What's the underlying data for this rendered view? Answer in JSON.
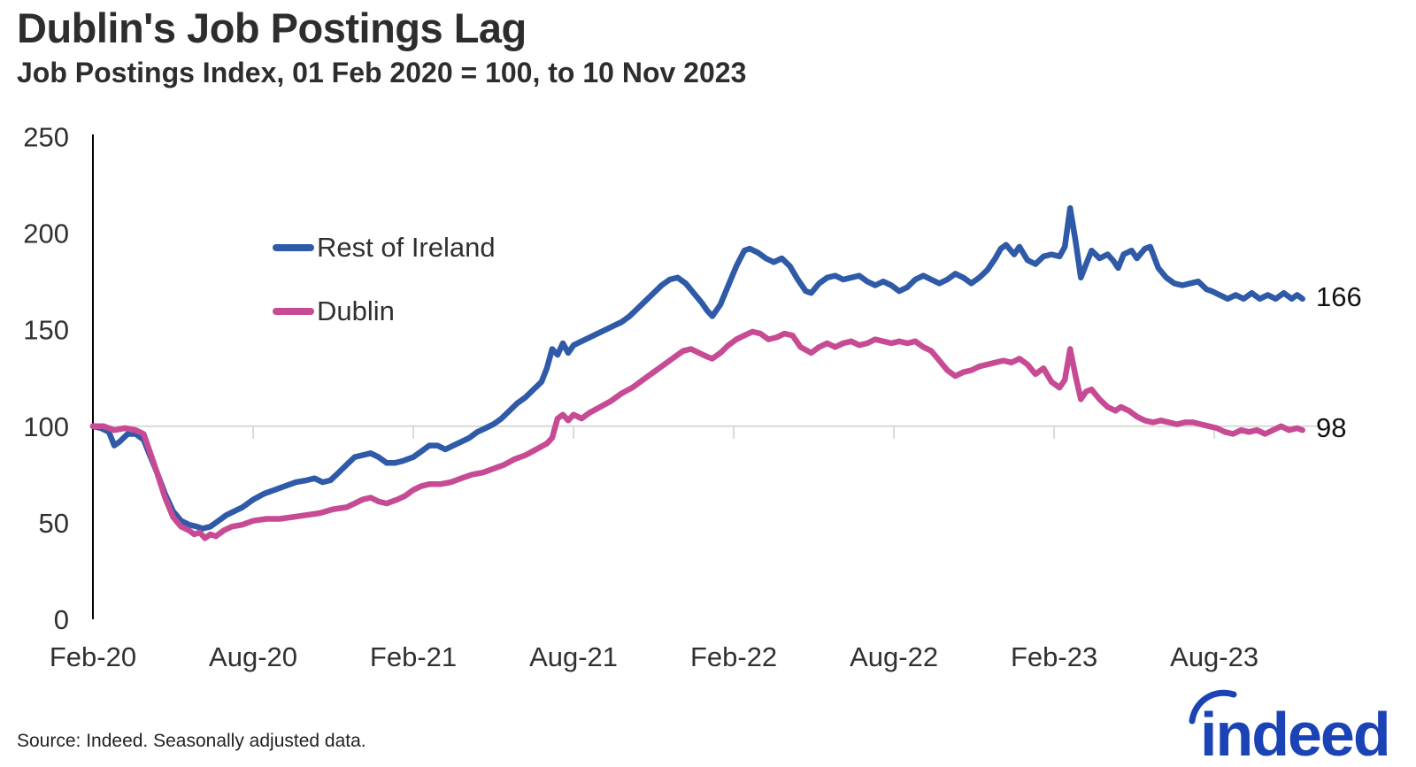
{
  "header": {
    "title": "Dublin's Job Postings Lag",
    "subtitle": "Job Postings Index, 01 Feb 2020 = 100, to 10 Nov 2023"
  },
  "footer": {
    "source": "Source: Indeed. Seasonally adjusted data.",
    "logo_text": "indeed"
  },
  "colors": {
    "rest_of_ireland_line": "#2F5AA7",
    "dublin_line": "#C74B94",
    "gridline": "#d9d9d9",
    "axis": "#000000",
    "text": "#303030",
    "logo_blue": "#1A44B5"
  },
  "chart_data": {
    "type": "line",
    "title": "Dublin's Job Postings Lag",
    "subtitle": "Job Postings Index, 01 Feb 2020 = 100, to 10 Nov 2023",
    "xlabel": "",
    "ylabel": "",
    "x_unit": "months since Feb-2020",
    "xlim": [
      0,
      45.3
    ],
    "ylim": [
      0,
      250
    ],
    "yticks": [
      250,
      200,
      150,
      100,
      50,
      0
    ],
    "xtick_months": [
      0,
      6,
      12,
      18,
      24,
      30,
      36,
      42
    ],
    "xticklabels": [
      "Feb-20",
      "Aug-20",
      "Feb-21",
      "Aug-21",
      "Feb-22",
      "Aug-22",
      "Feb-23",
      "Aug-23"
    ],
    "baseline_value": 100,
    "grid": "single horizontal gridline at index 100 with ticks at each Feb/Aug",
    "legend_position": "upper-left inside plot",
    "series": [
      {
        "name": "Rest of Ireland",
        "color": "#2F5AA7",
        "end_label": "166",
        "points": [
          [
            0,
            100
          ],
          [
            0.3,
            99
          ],
          [
            0.6,
            97
          ],
          [
            0.8,
            90
          ],
          [
            1.0,
            92
          ],
          [
            1.3,
            96
          ],
          [
            1.6,
            96
          ],
          [
            1.9,
            93
          ],
          [
            2.1,
            86
          ],
          [
            2.4,
            76
          ],
          [
            2.7,
            65
          ],
          [
            3.0,
            56
          ],
          [
            3.3,
            51
          ],
          [
            3.6,
            49
          ],
          [
            3.9,
            48
          ],
          [
            4.1,
            47
          ],
          [
            4.4,
            48
          ],
          [
            4.7,
            51
          ],
          [
            5.0,
            54
          ],
          [
            5.3,
            56
          ],
          [
            5.6,
            58
          ],
          [
            6.0,
            62
          ],
          [
            6.4,
            65
          ],
          [
            6.8,
            67
          ],
          [
            7.2,
            69
          ],
          [
            7.6,
            71
          ],
          [
            8.0,
            72
          ],
          [
            8.3,
            73
          ],
          [
            8.6,
            71
          ],
          [
            8.9,
            72
          ],
          [
            9.2,
            76
          ],
          [
            9.5,
            80
          ],
          [
            9.8,
            84
          ],
          [
            10.1,
            85
          ],
          [
            10.4,
            86
          ],
          [
            10.7,
            84
          ],
          [
            11.0,
            81
          ],
          [
            11.3,
            81
          ],
          [
            11.6,
            82
          ],
          [
            12.0,
            84
          ],
          [
            12.3,
            87
          ],
          [
            12.6,
            90
          ],
          [
            12.9,
            90
          ],
          [
            13.2,
            88
          ],
          [
            13.5,
            90
          ],
          [
            13.8,
            92
          ],
          [
            14.1,
            94
          ],
          [
            14.4,
            97
          ],
          [
            14.7,
            99
          ],
          [
            15.0,
            101
          ],
          [
            15.3,
            104
          ],
          [
            15.6,
            108
          ],
          [
            15.9,
            112
          ],
          [
            16.2,
            115
          ],
          [
            16.5,
            119
          ],
          [
            16.8,
            123
          ],
          [
            17.0,
            130
          ],
          [
            17.2,
            140
          ],
          [
            17.4,
            137
          ],
          [
            17.6,
            143
          ],
          [
            17.8,
            138
          ],
          [
            18.0,
            142
          ],
          [
            18.3,
            144
          ],
          [
            18.6,
            146
          ],
          [
            18.9,
            148
          ],
          [
            19.2,
            150
          ],
          [
            19.5,
            152
          ],
          [
            19.8,
            154
          ],
          [
            20.1,
            157
          ],
          [
            20.4,
            161
          ],
          [
            20.7,
            165
          ],
          [
            21.0,
            169
          ],
          [
            21.3,
            173
          ],
          [
            21.6,
            176
          ],
          [
            21.9,
            177
          ],
          [
            22.2,
            174
          ],
          [
            22.5,
            169
          ],
          [
            22.8,
            164
          ],
          [
            23.0,
            160
          ],
          [
            23.2,
            157
          ],
          [
            23.5,
            163
          ],
          [
            23.8,
            173
          ],
          [
            24.1,
            183
          ],
          [
            24.4,
            191
          ],
          [
            24.6,
            192
          ],
          [
            24.9,
            190
          ],
          [
            25.2,
            187
          ],
          [
            25.5,
            185
          ],
          [
            25.8,
            187
          ],
          [
            26.1,
            183
          ],
          [
            26.4,
            176
          ],
          [
            26.7,
            170
          ],
          [
            26.9,
            169
          ],
          [
            27.2,
            174
          ],
          [
            27.5,
            177
          ],
          [
            27.8,
            178
          ],
          [
            28.1,
            176
          ],
          [
            28.4,
            177
          ],
          [
            28.7,
            178
          ],
          [
            29.0,
            175
          ],
          [
            29.3,
            173
          ],
          [
            29.6,
            175
          ],
          [
            29.9,
            173
          ],
          [
            30.2,
            170
          ],
          [
            30.5,
            172
          ],
          [
            30.8,
            176
          ],
          [
            31.1,
            178
          ],
          [
            31.4,
            176
          ],
          [
            31.7,
            174
          ],
          [
            32.0,
            176
          ],
          [
            32.3,
            179
          ],
          [
            32.6,
            177
          ],
          [
            32.9,
            174
          ],
          [
            33.2,
            177
          ],
          [
            33.5,
            181
          ],
          [
            33.8,
            187
          ],
          [
            34.0,
            192
          ],
          [
            34.2,
            194
          ],
          [
            34.5,
            189
          ],
          [
            34.7,
            193
          ],
          [
            35.0,
            186
          ],
          [
            35.3,
            184
          ],
          [
            35.6,
            188
          ],
          [
            35.9,
            189
          ],
          [
            36.2,
            188
          ],
          [
            36.4,
            193
          ],
          [
            36.6,
            213
          ],
          [
            36.8,
            196
          ],
          [
            37.0,
            177
          ],
          [
            37.2,
            184
          ],
          [
            37.4,
            191
          ],
          [
            37.7,
            187
          ],
          [
            38.0,
            189
          ],
          [
            38.2,
            186
          ],
          [
            38.4,
            182
          ],
          [
            38.6,
            189
          ],
          [
            38.9,
            191
          ],
          [
            39.1,
            187
          ],
          [
            39.4,
            192
          ],
          [
            39.6,
            193
          ],
          [
            39.9,
            182
          ],
          [
            40.2,
            177
          ],
          [
            40.5,
            174
          ],
          [
            40.8,
            173
          ],
          [
            41.1,
            174
          ],
          [
            41.4,
            175
          ],
          [
            41.7,
            171
          ],
          [
            41.9,
            170
          ],
          [
            42.2,
            168
          ],
          [
            42.5,
            166
          ],
          [
            42.8,
            168
          ],
          [
            43.1,
            166
          ],
          [
            43.4,
            169
          ],
          [
            43.7,
            166
          ],
          [
            44.0,
            168
          ],
          [
            44.3,
            166
          ],
          [
            44.6,
            169
          ],
          [
            44.9,
            166
          ],
          [
            45.1,
            168
          ],
          [
            45.3,
            166
          ]
        ]
      },
      {
        "name": "Dublin",
        "color": "#C74B94",
        "end_label": "98",
        "points": [
          [
            0,
            100
          ],
          [
            0.4,
            100
          ],
          [
            0.8,
            98
          ],
          [
            1.2,
            99
          ],
          [
            1.6,
            98
          ],
          [
            1.9,
            96
          ],
          [
            2.1,
            88
          ],
          [
            2.4,
            76
          ],
          [
            2.7,
            63
          ],
          [
            3.0,
            53
          ],
          [
            3.3,
            48
          ],
          [
            3.6,
            46
          ],
          [
            3.8,
            44
          ],
          [
            4.0,
            45
          ],
          [
            4.2,
            42
          ],
          [
            4.4,
            44
          ],
          [
            4.6,
            43
          ],
          [
            4.9,
            46
          ],
          [
            5.2,
            48
          ],
          [
            5.6,
            49
          ],
          [
            6.0,
            51
          ],
          [
            6.5,
            52
          ],
          [
            7.0,
            52
          ],
          [
            7.5,
            53
          ],
          [
            8.0,
            54
          ],
          [
            8.5,
            55
          ],
          [
            9.0,
            57
          ],
          [
            9.5,
            58
          ],
          [
            9.8,
            60
          ],
          [
            10.1,
            62
          ],
          [
            10.4,
            63
          ],
          [
            10.7,
            61
          ],
          [
            11.0,
            60
          ],
          [
            11.4,
            62
          ],
          [
            11.7,
            64
          ],
          [
            12.0,
            67
          ],
          [
            12.3,
            69
          ],
          [
            12.6,
            70
          ],
          [
            13.0,
            70
          ],
          [
            13.4,
            71
          ],
          [
            13.8,
            73
          ],
          [
            14.2,
            75
          ],
          [
            14.6,
            76
          ],
          [
            15.0,
            78
          ],
          [
            15.4,
            80
          ],
          [
            15.8,
            83
          ],
          [
            16.2,
            85
          ],
          [
            16.6,
            88
          ],
          [
            17.0,
            91
          ],
          [
            17.2,
            94
          ],
          [
            17.4,
            104
          ],
          [
            17.6,
            106
          ],
          [
            17.8,
            103
          ],
          [
            18.0,
            106
          ],
          [
            18.3,
            104
          ],
          [
            18.6,
            107
          ],
          [
            19.0,
            110
          ],
          [
            19.4,
            113
          ],
          [
            19.8,
            117
          ],
          [
            20.2,
            120
          ],
          [
            20.6,
            124
          ],
          [
            21.0,
            128
          ],
          [
            21.4,
            132
          ],
          [
            21.8,
            136
          ],
          [
            22.1,
            139
          ],
          [
            22.4,
            140
          ],
          [
            22.7,
            138
          ],
          [
            23.0,
            136
          ],
          [
            23.2,
            135
          ],
          [
            23.5,
            138
          ],
          [
            23.8,
            142
          ],
          [
            24.1,
            145
          ],
          [
            24.4,
            147
          ],
          [
            24.7,
            149
          ],
          [
            25.0,
            148
          ],
          [
            25.3,
            145
          ],
          [
            25.6,
            146
          ],
          [
            25.9,
            148
          ],
          [
            26.2,
            147
          ],
          [
            26.5,
            141
          ],
          [
            26.9,
            138
          ],
          [
            27.2,
            141
          ],
          [
            27.5,
            143
          ],
          [
            27.8,
            141
          ],
          [
            28.1,
            143
          ],
          [
            28.4,
            144
          ],
          [
            28.7,
            142
          ],
          [
            29.0,
            143
          ],
          [
            29.3,
            145
          ],
          [
            29.6,
            144
          ],
          [
            29.9,
            143
          ],
          [
            30.2,
            144
          ],
          [
            30.5,
            143
          ],
          [
            30.8,
            144
          ],
          [
            31.1,
            141
          ],
          [
            31.4,
            139
          ],
          [
            31.7,
            134
          ],
          [
            32.0,
            129
          ],
          [
            32.3,
            126
          ],
          [
            32.6,
            128
          ],
          [
            32.9,
            129
          ],
          [
            33.2,
            131
          ],
          [
            33.5,
            132
          ],
          [
            33.8,
            133
          ],
          [
            34.1,
            134
          ],
          [
            34.4,
            133
          ],
          [
            34.7,
            135
          ],
          [
            35.0,
            132
          ],
          [
            35.3,
            127
          ],
          [
            35.6,
            130
          ],
          [
            35.9,
            123
          ],
          [
            36.2,
            120
          ],
          [
            36.4,
            124
          ],
          [
            36.6,
            140
          ],
          [
            36.8,
            126
          ],
          [
            37.0,
            114
          ],
          [
            37.2,
            118
          ],
          [
            37.4,
            119
          ],
          [
            37.7,
            114
          ],
          [
            38.0,
            110
          ],
          [
            38.3,
            108
          ],
          [
            38.5,
            110
          ],
          [
            38.8,
            108
          ],
          [
            39.1,
            105
          ],
          [
            39.4,
            103
          ],
          [
            39.7,
            102
          ],
          [
            40.0,
            103
          ],
          [
            40.3,
            102
          ],
          [
            40.6,
            101
          ],
          [
            40.9,
            102
          ],
          [
            41.2,
            102
          ],
          [
            41.5,
            101
          ],
          [
            41.8,
            100
          ],
          [
            42.1,
            99
          ],
          [
            42.4,
            97
          ],
          [
            42.7,
            96
          ],
          [
            43.0,
            98
          ],
          [
            43.3,
            97
          ],
          [
            43.6,
            98
          ],
          [
            43.9,
            96
          ],
          [
            44.2,
            98
          ],
          [
            44.5,
            100
          ],
          [
            44.8,
            98
          ],
          [
            45.1,
            99
          ],
          [
            45.3,
            98
          ]
        ]
      }
    ]
  }
}
